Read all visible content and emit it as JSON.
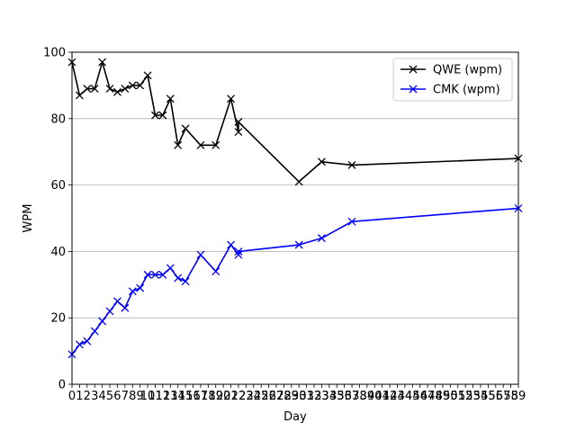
{
  "chart_data": {
    "type": "line",
    "title": "",
    "xlabel": "Day",
    "ylabel": "WPM",
    "xlim": [
      0,
      59
    ],
    "ylim": [
      0,
      100
    ],
    "y_ticks": [
      0,
      20,
      40,
      60,
      80,
      100
    ],
    "x_ticks": [
      0,
      1,
      2,
      3,
      4,
      5,
      6,
      7,
      8,
      9,
      10,
      11,
      12,
      13,
      14,
      15,
      16,
      17,
      18,
      19,
      20,
      21,
      22,
      23,
      24,
      25,
      26,
      27,
      28,
      29,
      30,
      31,
      32,
      33,
      34,
      35,
      36,
      37,
      38,
      39,
      40,
      41,
      42,
      43,
      44,
      45,
      46,
      47,
      48,
      49,
      50,
      51,
      52,
      53,
      54,
      55,
      56,
      57,
      58,
      59
    ],
    "grid": "y-major",
    "legend_position": "top-right",
    "series": [
      {
        "name": "QWE (wpm)",
        "color": "#000000",
        "marker": "x",
        "x": [
          0,
          1,
          2,
          3,
          4,
          5,
          6,
          7,
          8,
          9,
          10,
          11,
          12,
          13,
          14,
          15,
          17,
          19,
          21,
          22,
          22,
          30,
          33,
          37,
          59
        ],
        "y": [
          97,
          87,
          89,
          89,
          97,
          89,
          88,
          89,
          90,
          90,
          93,
          81,
          81,
          86,
          72,
          77,
          72,
          72,
          86,
          76,
          79,
          61,
          67,
          66,
          68
        ]
      },
      {
        "name": "CMK (wpm)",
        "color": "#0000ff",
        "marker": "x",
        "x": [
          0,
          1,
          2,
          3,
          4,
          5,
          6,
          7,
          8,
          9,
          10,
          11,
          12,
          13,
          14,
          15,
          17,
          19,
          21,
          22,
          22,
          30,
          33,
          37,
          59
        ],
        "y": [
          9,
          12,
          13,
          16,
          19,
          22,
          25,
          23,
          28,
          29,
          33,
          33,
          33,
          35,
          32,
          31,
          39,
          34,
          42,
          39,
          40,
          42,
          44,
          49,
          53
        ]
      }
    ]
  }
}
